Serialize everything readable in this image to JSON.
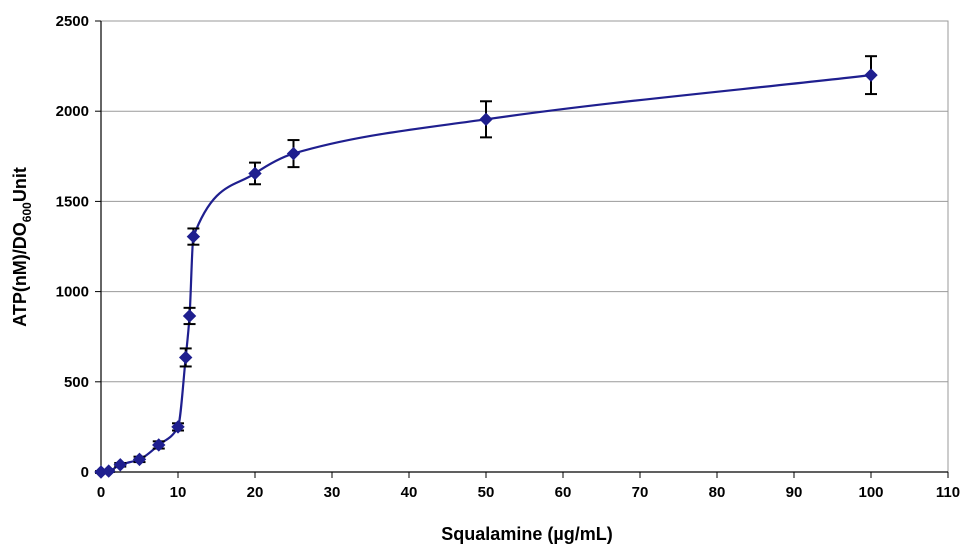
{
  "chart_data": {
    "type": "scatter",
    "title": "",
    "xlabel": "Squalamine (µg/mL)",
    "ylabel": {
      "prefix": "ATP(nM)/DO",
      "subscript": "600",
      "suffix": "Unit"
    },
    "xlim": [
      0,
      110
    ],
    "ylim": [
      0,
      2500
    ],
    "xticks": [
      0,
      10,
      20,
      30,
      40,
      50,
      60,
      70,
      80,
      90,
      100,
      110
    ],
    "yticks": [
      0,
      500,
      1000,
      1500,
      2000,
      2500
    ],
    "grid": "horizontal",
    "legend": "none",
    "marker": "diamond",
    "colors": {
      "series": "#1f1f8f",
      "error_bars": "#000000",
      "grid": "#9a9a9a",
      "axis": "#000000"
    },
    "series": [
      {
        "x": [
          0,
          1,
          2.5,
          5,
          7.5,
          10,
          11,
          11.5,
          12,
          20,
          25,
          50,
          100
        ],
        "y": [
          0,
          5,
          40,
          70,
          150,
          250,
          635,
          865,
          1305,
          1655,
          1765,
          1955,
          2200
        ],
        "error": [
          5,
          5,
          10,
          15,
          20,
          20,
          50,
          45,
          45,
          60,
          75,
          100,
          105
        ]
      }
    ]
  }
}
